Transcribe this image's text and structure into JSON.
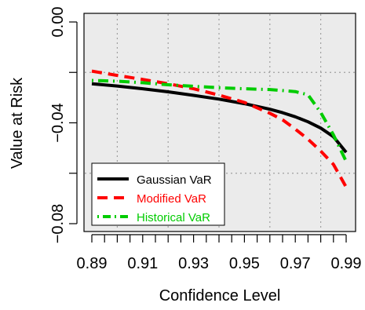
{
  "chart_data": {
    "type": "line",
    "title": "",
    "xlabel": "Confidence Level",
    "ylabel": "Value at Risk",
    "xlim": [
      0.89,
      0.99
    ],
    "ylim": [
      -0.08,
      0.0
    ],
    "x_tick_labels": [
      "0.89",
      "0.91",
      "0.93",
      "0.95",
      "0.97",
      "0.99"
    ],
    "x_tick_values": [
      0.89,
      0.91,
      0.93,
      0.95,
      0.97,
      0.99
    ],
    "x_minor_ticks": [
      0.89,
      0.895,
      0.9,
      0.905,
      0.91,
      0.915,
      0.92,
      0.925,
      0.93,
      0.935,
      0.94,
      0.945,
      0.95,
      0.955,
      0.96,
      0.965,
      0.97,
      0.975,
      0.98,
      0.985,
      0.99
    ],
    "y_tick_labels": [
      "0.00",
      "−0.04",
      "−0.08"
    ],
    "y_tick_values": [
      0.0,
      -0.04,
      -0.08
    ],
    "y_minor_ticks": [
      0.0,
      -0.02,
      -0.04,
      -0.06,
      -0.08
    ],
    "grid": true,
    "grid_x": [
      0.9,
      0.92,
      0.94,
      0.96,
      0.98
    ],
    "grid_y": [
      -0.02,
      -0.06
    ],
    "legend_position": "bottom-left",
    "series": [
      {
        "name": "Gaussian VaR",
        "color": "#000000",
        "dash": "solid",
        "x": [
          0.89,
          0.9,
          0.91,
          0.92,
          0.93,
          0.94,
          0.95,
          0.96,
          0.965,
          0.97,
          0.975,
          0.98,
          0.985,
          0.99
        ],
        "y": [
          -0.0245,
          -0.0254,
          -0.0265,
          -0.0277,
          -0.0291,
          -0.0306,
          -0.0324,
          -0.0346,
          -0.036,
          -0.0376,
          -0.0396,
          -0.0421,
          -0.0455,
          -0.0517
        ]
      },
      {
        "name": "Modified VaR",
        "color": "#ff0000",
        "dash": "dashed",
        "x": [
          0.89,
          0.9,
          0.91,
          0.92,
          0.93,
          0.94,
          0.95,
          0.96,
          0.965,
          0.97,
          0.975,
          0.98,
          0.985,
          0.99
        ],
        "y": [
          -0.0195,
          -0.0212,
          -0.0228,
          -0.0245,
          -0.0265,
          -0.029,
          -0.0319,
          -0.0362,
          -0.0388,
          -0.0425,
          -0.0465,
          -0.0512,
          -0.0565,
          -0.0655
        ]
      },
      {
        "name": "Historical VaR",
        "color": "#00cc00",
        "dash": "dotdash",
        "x": [
          0.89,
          0.9,
          0.91,
          0.92,
          0.93,
          0.94,
          0.95,
          0.96,
          0.965,
          0.97,
          0.975,
          0.98,
          0.985,
          0.99
        ],
        "y": [
          -0.0232,
          -0.0235,
          -0.0241,
          -0.0249,
          -0.0255,
          -0.0261,
          -0.0265,
          -0.0268,
          -0.0272,
          -0.0276,
          -0.0289,
          -0.0359,
          -0.0448,
          -0.0553
        ]
      }
    ]
  }
}
